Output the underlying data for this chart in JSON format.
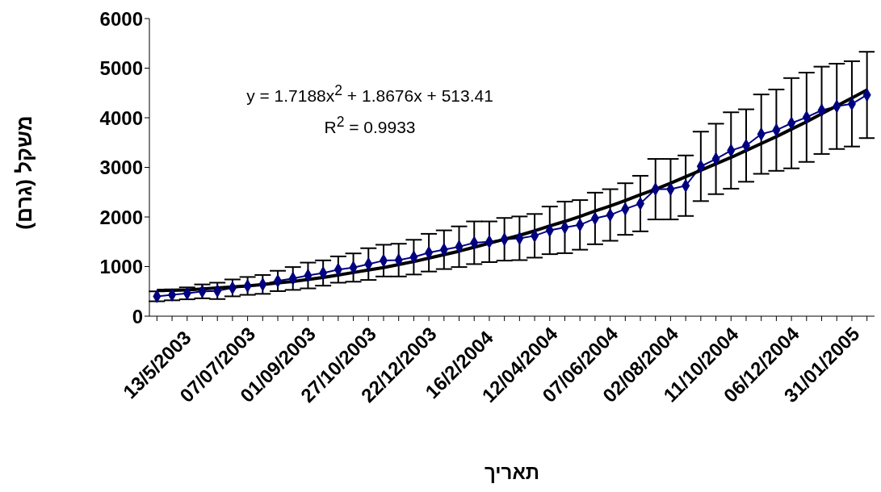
{
  "chart_data": {
    "type": "line",
    "xlabel": "תאריך",
    "ylabel": "משקל (גרם)",
    "annotations": [
      "y = 1.7188x$^{2}$ + 1.8676x + 513.41",
      "R$^{2}$ = 0.9933"
    ],
    "categories": [
      "13/5/2003",
      null,
      null,
      null,
      "07/07/2003",
      null,
      null,
      null,
      "01/09/2003",
      null,
      null,
      null,
      "27/10/2003",
      null,
      null,
      null,
      "22/12/2003",
      null,
      null,
      null,
      "16/2/2004",
      null,
      null,
      null,
      "12/04/2004",
      null,
      null,
      null,
      "07/06/2004",
      null,
      null,
      null,
      "02/08/2004",
      null,
      null,
      null,
      "11/10/2004",
      null,
      null,
      null,
      "06/12/2004",
      null,
      null,
      null,
      "31/01/2005",
      null,
      null,
      null
    ],
    "ylim": [
      0,
      6000
    ],
    "yticks": [
      0,
      1000,
      2000,
      3000,
      4000,
      5000,
      6000
    ],
    "series": [
      {
        "color": "#000080",
        "marker": "diamond",
        "line_style": "solid",
        "values": [
          400,
          430,
          460,
          500,
          510,
          570,
          610,
          640,
          710,
          760,
          820,
          870,
          940,
          980,
          1050,
          1120,
          1130,
          1190,
          1280,
          1340,
          1400,
          1480,
          1500,
          1550,
          1570,
          1620,
          1730,
          1790,
          1840,
          1970,
          2040,
          2160,
          2270,
          2560,
          2560,
          2630,
          3020,
          3170,
          3340,
          3440,
          3670,
          3750,
          3890,
          4010,
          4150,
          4230,
          4280,
          4460
        ],
        "errors": [
          100,
          110,
          120,
          140,
          165,
          170,
          180,
          190,
          205,
          230,
          260,
          255,
          265,
          285,
          320,
          320,
          330,
          350,
          380,
          390,
          410,
          430,
          410,
          430,
          440,
          440,
          480,
          520,
          500,
          520,
          520,
          520,
          560,
          610,
          610,
          610,
          700,
          710,
          770,
          730,
          800,
          820,
          910,
          900,
          880,
          860,
          860,
          870
        ]
      },
      {
        "color": "#000000",
        "marker": "none",
        "line_style": "solid",
        "values": [
          520,
          520,
          530,
          550,
          570,
          590,
          610,
          640,
          670,
          700,
          740,
          780,
          830,
          880,
          930,
          980,
          1040,
          1100,
          1170,
          1240,
          1310,
          1390,
          1470,
          1550,
          1630,
          1720,
          1820,
          1910,
          2010,
          2120,
          2220,
          2330,
          2450,
          2560,
          2680,
          2810,
          2940,
          3070,
          3200,
          3340,
          3480,
          3620,
          3770,
          3920,
          4080,
          4240,
          4400,
          4560
        ]
      }
    ]
  }
}
